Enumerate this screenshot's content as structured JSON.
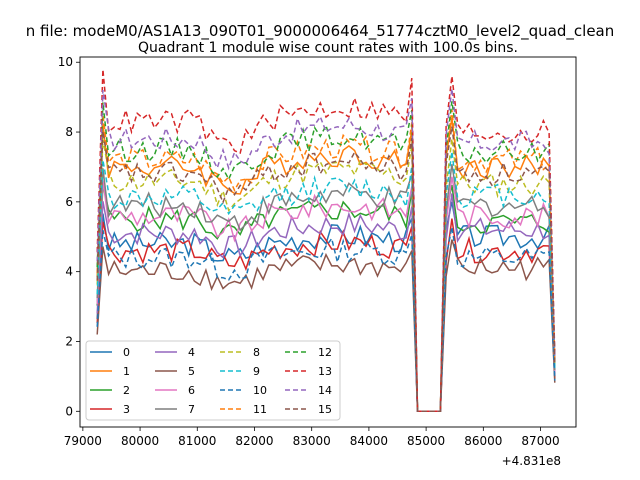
{
  "figure": {
    "suptitle": "n file: modeM0/AS1A13_090T01_9000006464_51774cztM0_level2_quad_clean",
    "title": "Quadrant 1 module wise count rates with 100.0s bins.",
    "offset_label": "+4.831e8"
  },
  "chart_data": {
    "type": "line",
    "title": "Quadrant 1 module wise count rates with 100.0s bins.",
    "xlabel": "",
    "ylabel": "",
    "x_offset": 483100000,
    "xlim": [
      78950,
      87620
    ],
    "ylim": [
      -0.45,
      10.15
    ],
    "x_ticks": [
      79000,
      80000,
      81000,
      82000,
      83000,
      84000,
      85000,
      86000,
      87000
    ],
    "y_ticks": [
      0,
      2,
      4,
      6,
      8,
      10
    ],
    "grid": false,
    "legend_placement": "lower-left",
    "legend_columns": 4,
    "x_start": 79250,
    "x_step": 100,
    "gap": [
      84850,
      85250
    ],
    "series": [
      {
        "name": "0",
        "color": "#1f77b4",
        "dash": "solid",
        "values_segment1_peak": 7.6,
        "level_seg1": 4.8,
        "level_seg2": 5.0
      },
      {
        "name": "1",
        "color": "#ff7f0e",
        "dash": "solid",
        "level_seg1": 7.0,
        "level_seg2": 7.0
      },
      {
        "name": "2",
        "color": "#2ca02c",
        "dash": "solid",
        "level_seg1": 5.5,
        "level_seg2": 5.4
      },
      {
        "name": "3",
        "color": "#d62728",
        "dash": "solid",
        "level_seg1": 4.6,
        "level_seg2": 4.6
      },
      {
        "name": "4",
        "color": "#9467bd",
        "dash": "solid",
        "level_seg1": 5.1,
        "level_seg2": 5.2
      },
      {
        "name": "5",
        "color": "#8c564b",
        "dash": "solid",
        "level_seg1": 4.0,
        "level_seg2": 4.1
      },
      {
        "name": "6",
        "color": "#e377c2",
        "dash": "solid",
        "level_seg1": 5.6,
        "level_seg2": 5.6
      },
      {
        "name": "7",
        "color": "#7f7f7f",
        "dash": "solid",
        "level_seg1": 5.9,
        "level_seg2": 5.9
      },
      {
        "name": "8",
        "color": "#bcbd22",
        "dash": "dashed",
        "level_seg1": 6.6,
        "level_seg2": 6.5
      },
      {
        "name": "9",
        "color": "#17becf",
        "dash": "dashed",
        "level_seg1": 6.1,
        "level_seg2": 6.2
      },
      {
        "name": "10",
        "color": "#1f77b4",
        "dash": "dashed",
        "level_seg1": 4.4,
        "level_seg2": 4.4
      },
      {
        "name": "11",
        "color": "#ff7f0e",
        "dash": "dashed",
        "level_seg1": 7.2,
        "level_seg2": 7.2
      },
      {
        "name": "12",
        "color": "#2ca02c",
        "dash": "dashed",
        "level_seg1": 7.5,
        "level_seg2": 7.4
      },
      {
        "name": "13",
        "color": "#d62728",
        "dash": "dashed",
        "level_seg1": 8.3,
        "level_seg2": 8.0
      },
      {
        "name": "14",
        "color": "#9467bd",
        "dash": "dashed",
        "level_seg1": 7.8,
        "level_seg2": 7.7
      },
      {
        "name": "15",
        "color": "#8c564b",
        "dash": "dashed",
        "level_seg1": 6.8,
        "level_seg2": 6.8
      }
    ]
  }
}
